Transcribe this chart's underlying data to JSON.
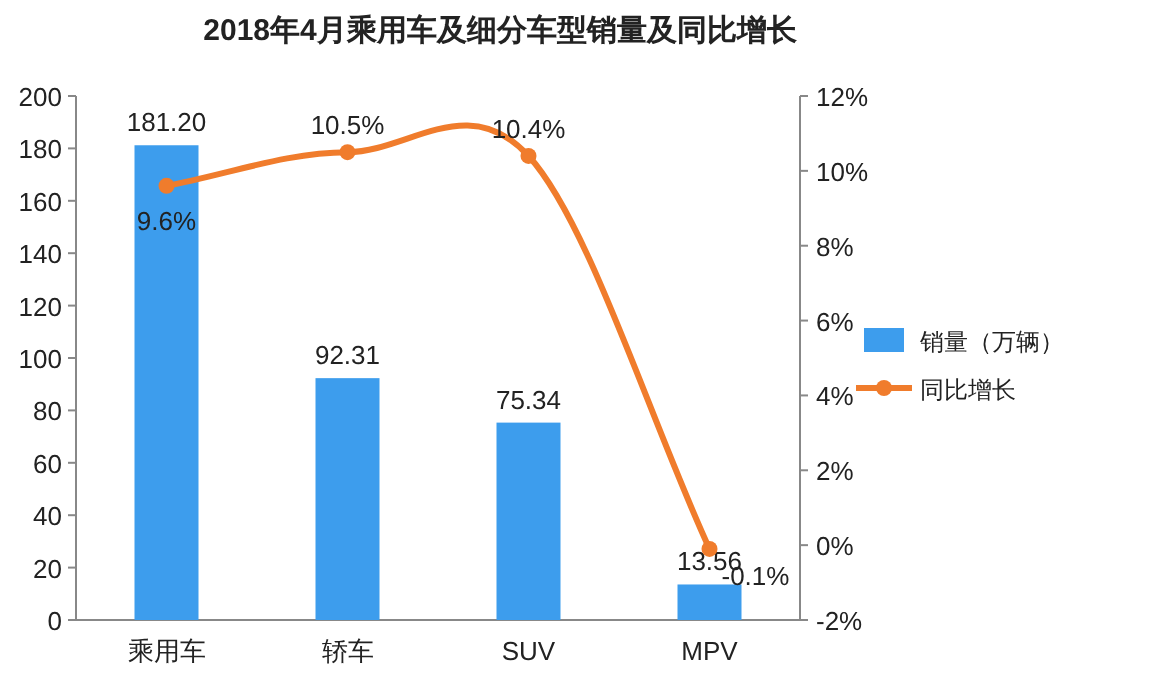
{
  "chart_data": {
    "type": "bar",
    "title": "2018年4月乘用车及细分车型销量及同比增长",
    "categories": [
      "乘用车",
      "轿车",
      "SUV",
      "MPV"
    ],
    "series": [
      {
        "name": "销量（万辆）",
        "color": "#3d9ded",
        "values": [
          181.2,
          92.31,
          75.34,
          13.56
        ],
        "value_labels": [
          "181.20",
          "92.31",
          "75.34",
          "13.56"
        ]
      },
      {
        "name": "同比增长",
        "type": "line",
        "axis": "y2",
        "color": "#f07c2c",
        "marker": "circle",
        "values": [
          9.6,
          10.5,
          10.4,
          -0.1
        ],
        "value_labels": [
          "9.6%",
          "10.5%",
          "10.4%",
          "-0.1%"
        ]
      }
    ],
    "ylim": [
      0,
      200
    ],
    "yticks": [
      0,
      20,
      40,
      60,
      80,
      100,
      120,
      140,
      160,
      180,
      200
    ],
    "y2lim": [
      -2,
      12
    ],
    "y2ticks": [
      {
        "value": -2,
        "label": "-2%"
      },
      {
        "value": 0,
        "label": "0%"
      },
      {
        "value": 2,
        "label": "2%"
      },
      {
        "value": 4,
        "label": "4%"
      },
      {
        "value": 6,
        "label": "6%"
      },
      {
        "value": 8,
        "label": "8%"
      },
      {
        "value": 10,
        "label": "10%"
      },
      {
        "value": 12,
        "label": "12%"
      }
    ],
    "grid": false,
    "legend": "right"
  }
}
